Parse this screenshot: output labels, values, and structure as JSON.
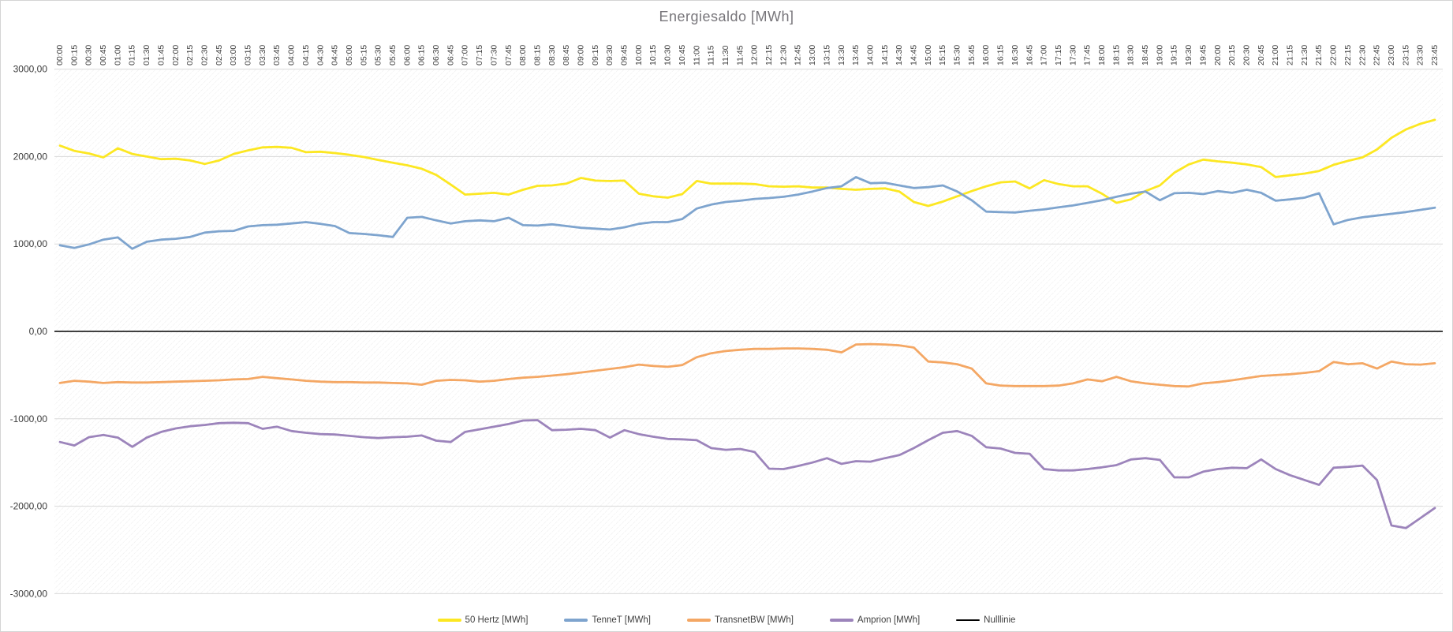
{
  "chart_data": {
    "type": "line",
    "title": "Energiesaldo [MWh]",
    "xlabel": "",
    "ylabel": "",
    "ylim": [
      -3000,
      3000
    ],
    "grid": true,
    "legend_position": "bottom",
    "y_ticks": [
      "3000,00",
      "2000,00",
      "1000,00",
      "0,00",
      "-1000,00",
      "-2000,00",
      "-3000,00"
    ],
    "y_tick_values": [
      3000,
      2000,
      1000,
      0,
      -1000,
      -2000,
      -3000
    ],
    "x": [
      "00:00",
      "00:15",
      "00:30",
      "00:45",
      "01:00",
      "01:15",
      "01:30",
      "01:45",
      "02:00",
      "02:15",
      "02:30",
      "02:45",
      "03:00",
      "03:15",
      "03:30",
      "03:45",
      "04:00",
      "04:15",
      "04:30",
      "04:45",
      "05:00",
      "05:15",
      "05:30",
      "05:45",
      "06:00",
      "06:15",
      "06:30",
      "06:45",
      "07:00",
      "07:15",
      "07:30",
      "07:45",
      "08:00",
      "08:15",
      "08:30",
      "08:45",
      "09:00",
      "09:15",
      "09:30",
      "09:45",
      "10:00",
      "10:15",
      "10:30",
      "10:45",
      "11:00",
      "11:15",
      "11:30",
      "11:45",
      "12:00",
      "12:15",
      "12:30",
      "12:45",
      "13:00",
      "13:15",
      "13:30",
      "13:45",
      "14:00",
      "14:15",
      "14:30",
      "14:45",
      "15:00",
      "15:15",
      "15:30",
      "15:45",
      "16:00",
      "16:15",
      "16:30",
      "16:45",
      "17:00",
      "17:15",
      "17:30",
      "17:45",
      "18:00",
      "18:15",
      "18:30",
      "18:45",
      "19:00",
      "19:15",
      "19:30",
      "19:45",
      "20:00",
      "20:15",
      "20:30",
      "20:45",
      "21:00",
      "21:15",
      "21:30",
      "21:45",
      "22:00",
      "22:15",
      "22:30",
      "22:45",
      "23:00",
      "23:15",
      "23:30",
      "23:45"
    ],
    "series": [
      {
        "name": "50 Hertz [MWh]",
        "color": "#fce722",
        "values": [
          2125,
          2065,
          2035,
          1990,
          2095,
          2030,
          2000,
          1970,
          1975,
          1955,
          1915,
          1955,
          2030,
          2070,
          2105,
          2110,
          2100,
          2050,
          2055,
          2040,
          2020,
          1995,
          1960,
          1930,
          1900,
          1860,
          1790,
          1680,
          1565,
          1575,
          1585,
          1565,
          1620,
          1665,
          1670,
          1690,
          1755,
          1725,
          1720,
          1725,
          1575,
          1545,
          1530,
          1570,
          1720,
          1690,
          1690,
          1690,
          1685,
          1660,
          1655,
          1660,
          1645,
          1645,
          1630,
          1620,
          1630,
          1635,
          1600,
          1480,
          1435,
          1485,
          1545,
          1605,
          1660,
          1705,
          1715,
          1635,
          1730,
          1685,
          1660,
          1660,
          1575,
          1470,
          1510,
          1605,
          1670,
          1815,
          1910,
          1965,
          1945,
          1930,
          1910,
          1880,
          1765,
          1785,
          1805,
          1835,
          1905,
          1950,
          1990,
          2080,
          2215,
          2310,
          2375,
          2420
        ]
      },
      {
        "name": "TenneT [MWh]",
        "color": "#7ea4ce",
        "values": [
          985,
          955,
          995,
          1050,
          1075,
          945,
          1025,
          1050,
          1060,
          1080,
          1130,
          1145,
          1150,
          1200,
          1215,
          1220,
          1235,
          1250,
          1230,
          1205,
          1125,
          1115,
          1100,
          1080,
          1300,
          1310,
          1270,
          1235,
          1260,
          1270,
          1260,
          1300,
          1215,
          1210,
          1225,
          1205,
          1185,
          1175,
          1165,
          1190,
          1230,
          1250,
          1250,
          1285,
          1405,
          1450,
          1480,
          1495,
          1515,
          1525,
          1540,
          1565,
          1600,
          1640,
          1660,
          1765,
          1695,
          1700,
          1670,
          1640,
          1650,
          1670,
          1600,
          1500,
          1370,
          1365,
          1360,
          1380,
          1395,
          1420,
          1440,
          1470,
          1500,
          1540,
          1575,
          1600,
          1500,
          1580,
          1585,
          1570,
          1605,
          1585,
          1620,
          1585,
          1495,
          1510,
          1530,
          1580,
          1225,
          1275,
          1305,
          1325,
          1345,
          1365,
          1390,
          1415
        ]
      },
      {
        "name": "TransnetBW [MWh]",
        "color": "#f4a764",
        "values": [
          -590,
          -565,
          -575,
          -590,
          -580,
          -585,
          -585,
          -580,
          -575,
          -570,
          -565,
          -560,
          -550,
          -545,
          -520,
          -535,
          -550,
          -565,
          -575,
          -580,
          -580,
          -585,
          -585,
          -590,
          -595,
          -610,
          -565,
          -555,
          -560,
          -575,
          -565,
          -545,
          -530,
          -520,
          -505,
          -490,
          -470,
          -450,
          -430,
          -410,
          -380,
          -395,
          -405,
          -385,
          -295,
          -250,
          -225,
          -210,
          -200,
          -200,
          -195,
          -195,
          -200,
          -210,
          -240,
          -150,
          -145,
          -150,
          -160,
          -185,
          -345,
          -355,
          -375,
          -425,
          -595,
          -620,
          -625,
          -625,
          -625,
          -620,
          -595,
          -550,
          -570,
          -520,
          -570,
          -595,
          -610,
          -625,
          -630,
          -595,
          -580,
          -560,
          -535,
          -510,
          -500,
          -490,
          -475,
          -455,
          -350,
          -375,
          -365,
          -425,
          -345,
          -375,
          -380,
          -365
        ]
      },
      {
        "name": "Amprion [MWh]",
        "color": "#9c84bb",
        "values": [
          -1265,
          -1305,
          -1210,
          -1185,
          -1215,
          -1320,
          -1215,
          -1150,
          -1110,
          -1085,
          -1070,
          -1050,
          -1045,
          -1050,
          -1115,
          -1090,
          -1140,
          -1160,
          -1175,
          -1180,
          -1195,
          -1210,
          -1220,
          -1210,
          -1205,
          -1190,
          -1250,
          -1265,
          -1150,
          -1120,
          -1090,
          -1060,
          -1020,
          -1015,
          -1130,
          -1125,
          -1115,
          -1130,
          -1215,
          -1130,
          -1175,
          -1205,
          -1230,
          -1235,
          -1245,
          -1335,
          -1355,
          -1345,
          -1380,
          -1570,
          -1575,
          -1540,
          -1500,
          -1450,
          -1515,
          -1485,
          -1490,
          -1450,
          -1415,
          -1335,
          -1245,
          -1160,
          -1140,
          -1195,
          -1325,
          -1340,
          -1390,
          -1400,
          -1575,
          -1590,
          -1590,
          -1575,
          -1555,
          -1530,
          -1465,
          -1450,
          -1470,
          -1670,
          -1670,
          -1605,
          -1575,
          -1560,
          -1565,
          -1465,
          -1575,
          -1645,
          -1700,
          -1755,
          -1560,
          -1550,
          -1535,
          -1700,
          -2220,
          -2250,
          -2135,
          -2020
        ]
      },
      {
        "name": "Nulllinie",
        "color": "#000000",
        "constant": 0
      }
    ]
  }
}
